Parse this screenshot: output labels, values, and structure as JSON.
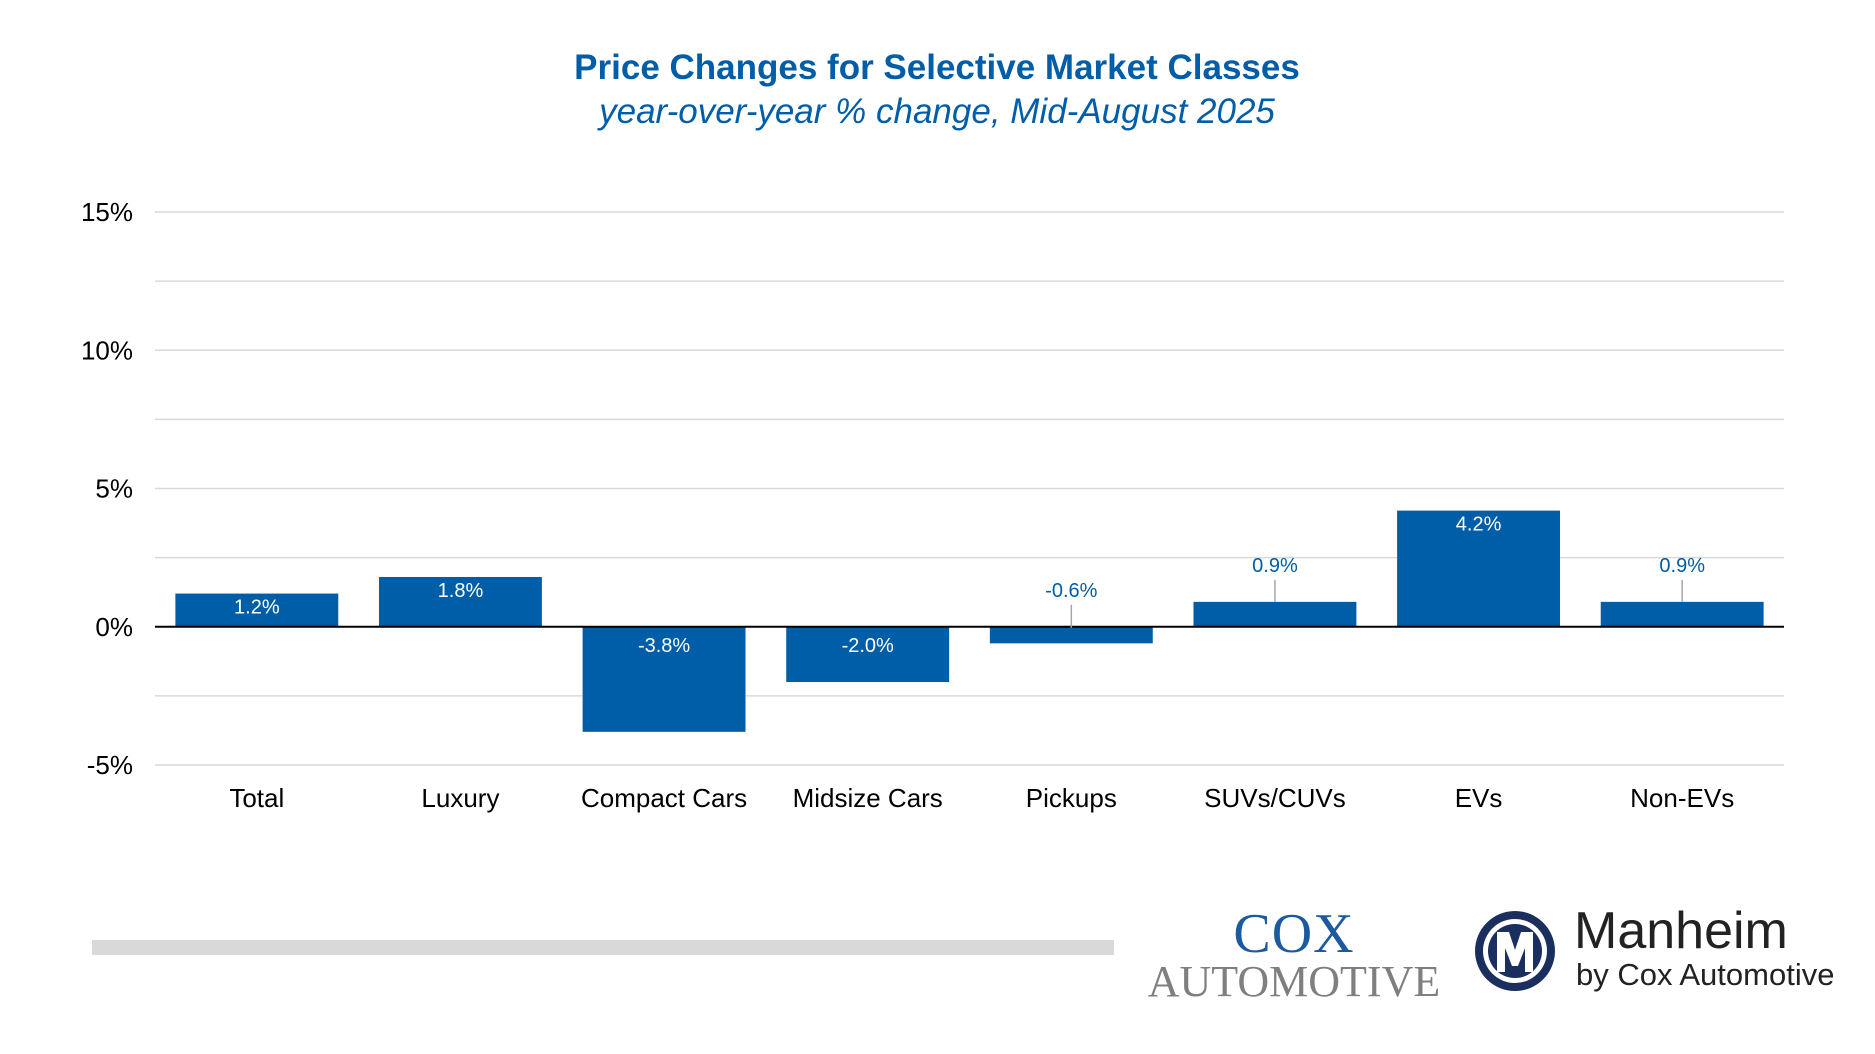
{
  "colors": {
    "bar": "#005da8",
    "title": "#005da8",
    "grid": "#d9d9d9",
    "axis": "#000000",
    "text": "#000000",
    "footer_bar": "#d9d9d9",
    "cox_blue": "#1c5aa0",
    "cox_gray": "#7f7f7f",
    "manheim_navy": "#1b2f5e",
    "manheim_text": "#222222"
  },
  "chart_data": {
    "type": "bar",
    "title": "Price Changes for Selective Market Classes",
    "subtitle": "year-over-year % change, Mid-August 2025",
    "categories": [
      "Total",
      "Luxury",
      "Compact Cars",
      "Midsize Cars",
      "Pickups",
      "SUVs/CUVs",
      "EVs",
      "Non-EVs"
    ],
    "values": [
      1.2,
      1.8,
      -3.8,
      -2.0,
      -0.6,
      0.9,
      4.2,
      0.9
    ],
    "data_labels": [
      "1.2%",
      "1.8%",
      "-3.8%",
      "-2.0%",
      "-0.6%",
      "0.9%",
      "4.2%",
      "0.9%"
    ],
    "ylim": [
      -5,
      15
    ],
    "yticks": [
      -5,
      0,
      5,
      10,
      15
    ],
    "ytick_labels": [
      "-5%",
      "0%",
      "5%",
      "10%",
      "15%"
    ],
    "minor_gridlines": [
      -2.5,
      2.5,
      7.5,
      12.5
    ],
    "grid": true,
    "legend": "none"
  },
  "logos": {
    "cox_line1": "COX",
    "cox_line2": "AUTOMOTIVE",
    "manheim_name": "Manheim",
    "manheim_tagline": "by Cox Automotive"
  }
}
